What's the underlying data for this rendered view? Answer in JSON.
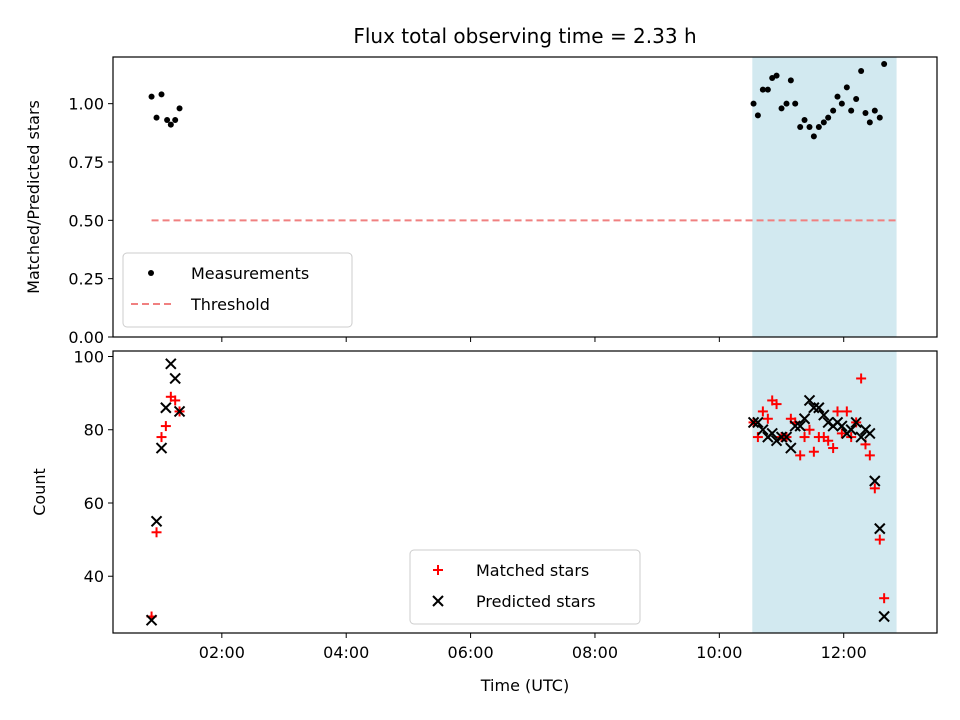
{
  "chart_data": [
    {
      "type": "scatter",
      "title": "Flux total observing time = 2.33 h",
      "xlabel": "",
      "ylabel": "Matched/Predicted stars",
      "ylim": [
        0,
        1.2
      ],
      "yticks": [
        "0.00",
        "0.25",
        "0.50",
        "0.75",
        "1.00"
      ],
      "xlim": [
        0.25,
        13.5
      ],
      "legend_position": "lower-left",
      "shaded_interval": [
        10.53,
        12.85
      ],
      "shade_color": "#d2e9f0",
      "series": [
        {
          "name": "Measurements",
          "marker": "dot",
          "color": "#000000",
          "points": [
            [
              0.87,
              1.03
            ],
            [
              0.95,
              0.94
            ],
            [
              1.03,
              1.04
            ],
            [
              1.12,
              0.93
            ],
            [
              1.18,
              0.91
            ],
            [
              1.25,
              0.93
            ],
            [
              1.32,
              0.98
            ],
            [
              10.55,
              1.0
            ],
            [
              10.62,
              0.95
            ],
            [
              10.7,
              1.06
            ],
            [
              10.78,
              1.06
            ],
            [
              10.85,
              1.11
            ],
            [
              10.92,
              1.12
            ],
            [
              11.0,
              0.98
            ],
            [
              11.08,
              1.0
            ],
            [
              11.15,
              1.1
            ],
            [
              11.22,
              1.0
            ],
            [
              11.3,
              0.9
            ],
            [
              11.37,
              0.93
            ],
            [
              11.45,
              0.9
            ],
            [
              11.52,
              0.86
            ],
            [
              11.6,
              0.9
            ],
            [
              11.68,
              0.92
            ],
            [
              11.75,
              0.94
            ],
            [
              11.83,
              0.97
            ],
            [
              11.9,
              1.03
            ],
            [
              11.97,
              1.0
            ],
            [
              12.05,
              1.07
            ],
            [
              12.12,
              0.97
            ],
            [
              12.2,
              1.02
            ],
            [
              12.28,
              1.14
            ],
            [
              12.35,
              0.96
            ],
            [
              12.42,
              0.92
            ],
            [
              12.5,
              0.97
            ],
            [
              12.58,
              0.94
            ],
            [
              12.65,
              1.17
            ]
          ]
        },
        {
          "name": "Threshold",
          "marker": "dashed-line",
          "color": "#f08080",
          "points": [
            [
              0.87,
              0.5
            ],
            [
              12.85,
              0.5
            ]
          ]
        }
      ]
    },
    {
      "type": "scatter",
      "title": "",
      "xlabel": "Time (UTC)",
      "ylabel": "Count",
      "ylim": [
        24.5,
        101.5
      ],
      "yticks": [
        "40",
        "60",
        "80",
        "100"
      ],
      "xlim": [
        0.25,
        13.5
      ],
      "xticks": [
        "02:00",
        "04:00",
        "06:00",
        "08:00",
        "10:00",
        "12:00"
      ],
      "legend_position": "lower-center",
      "shaded_interval": [
        10.53,
        12.85
      ],
      "shade_color": "#d2e9f0",
      "series": [
        {
          "name": "Matched stars",
          "marker": "plus",
          "color": "#ff0000",
          "points": [
            [
              0.87,
              29
            ],
            [
              0.95,
              52
            ],
            [
              1.03,
              78
            ],
            [
              1.1,
              81
            ],
            [
              1.18,
              89
            ],
            [
              1.25,
              88
            ],
            [
              1.32,
              85
            ],
            [
              10.55,
              82
            ],
            [
              10.62,
              78
            ],
            [
              10.7,
              85
            ],
            [
              10.78,
              83
            ],
            [
              10.85,
              88
            ],
            [
              10.92,
              87
            ],
            [
              11.0,
              78
            ],
            [
              11.08,
              78
            ],
            [
              11.15,
              83
            ],
            [
              11.22,
              82
            ],
            [
              11.3,
              73
            ],
            [
              11.37,
              78
            ],
            [
              11.45,
              80
            ],
            [
              11.52,
              74
            ],
            [
              11.6,
              78
            ],
            [
              11.68,
              78
            ],
            [
              11.75,
              77
            ],
            [
              11.83,
              75
            ],
            [
              11.9,
              85
            ],
            [
              11.97,
              79
            ],
            [
              12.05,
              85
            ],
            [
              12.12,
              78
            ],
            [
              12.2,
              82
            ],
            [
              12.28,
              94
            ],
            [
              12.35,
              76
            ],
            [
              12.42,
              73
            ],
            [
              12.5,
              64
            ],
            [
              12.58,
              50
            ],
            [
              12.65,
              34
            ]
          ]
        },
        {
          "name": "Predicted stars",
          "marker": "x",
          "color": "#000000",
          "points": [
            [
              0.87,
              28
            ],
            [
              0.95,
              55
            ],
            [
              1.03,
              75
            ],
            [
              1.1,
              86
            ],
            [
              1.18,
              98
            ],
            [
              1.25,
              94
            ],
            [
              1.32,
              85
            ],
            [
              10.55,
              82
            ],
            [
              10.62,
              82
            ],
            [
              10.7,
              80
            ],
            [
              10.78,
              78
            ],
            [
              10.85,
              79
            ],
            [
              10.92,
              77
            ],
            [
              11.0,
              78
            ],
            [
              11.08,
              78
            ],
            [
              11.15,
              75
            ],
            [
              11.22,
              81
            ],
            [
              11.3,
              81
            ],
            [
              11.37,
              83
            ],
            [
              11.45,
              88
            ],
            [
              11.52,
              86
            ],
            [
              11.6,
              86
            ],
            [
              11.68,
              84
            ],
            [
              11.75,
              82
            ],
            [
              11.83,
              81
            ],
            [
              11.9,
              82
            ],
            [
              11.97,
              81
            ],
            [
              12.05,
              79
            ],
            [
              12.12,
              80
            ],
            [
              12.2,
              82
            ],
            [
              12.28,
              78
            ],
            [
              12.35,
              80
            ],
            [
              12.42,
              79
            ],
            [
              12.5,
              66
            ],
            [
              12.58,
              53
            ],
            [
              12.65,
              29
            ]
          ]
        }
      ]
    }
  ]
}
